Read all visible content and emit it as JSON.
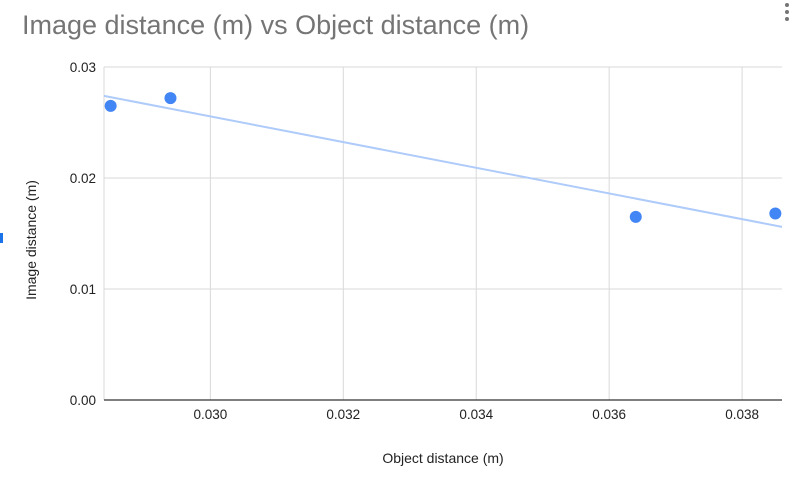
{
  "chart_data": {
    "type": "scatter",
    "title": "Image distance (m) vs Object distance (m)",
    "xlabel": "Object distance (m)",
    "ylabel": "Image distance (m)",
    "xlim": [
      0.0284,
      0.0386
    ],
    "ylim": [
      0.0,
      0.03
    ],
    "x_ticks": [
      "0.030",
      "0.032",
      "0.034",
      "0.036",
      "0.038"
    ],
    "x_tick_values": [
      0.03,
      0.032,
      0.034,
      0.036,
      0.038
    ],
    "y_ticks": [
      "0.00",
      "0.01",
      "0.02",
      "0.03"
    ],
    "y_tick_values": [
      0.0,
      0.01,
      0.02,
      0.03
    ],
    "grid": true,
    "series": [
      {
        "points": [
          {
            "x": 0.0285,
            "y": 0.0265
          },
          {
            "x": 0.0294,
            "y": 0.0272
          },
          {
            "x": 0.0364,
            "y": 0.0165
          },
          {
            "x": 0.0385,
            "y": 0.0168
          }
        ],
        "color": "#4285f4"
      }
    ],
    "trendline": {
      "x": [
        0.0284,
        0.0386
      ],
      "y": [
        0.0274,
        0.0156
      ],
      "color": "#aecbfa"
    }
  }
}
